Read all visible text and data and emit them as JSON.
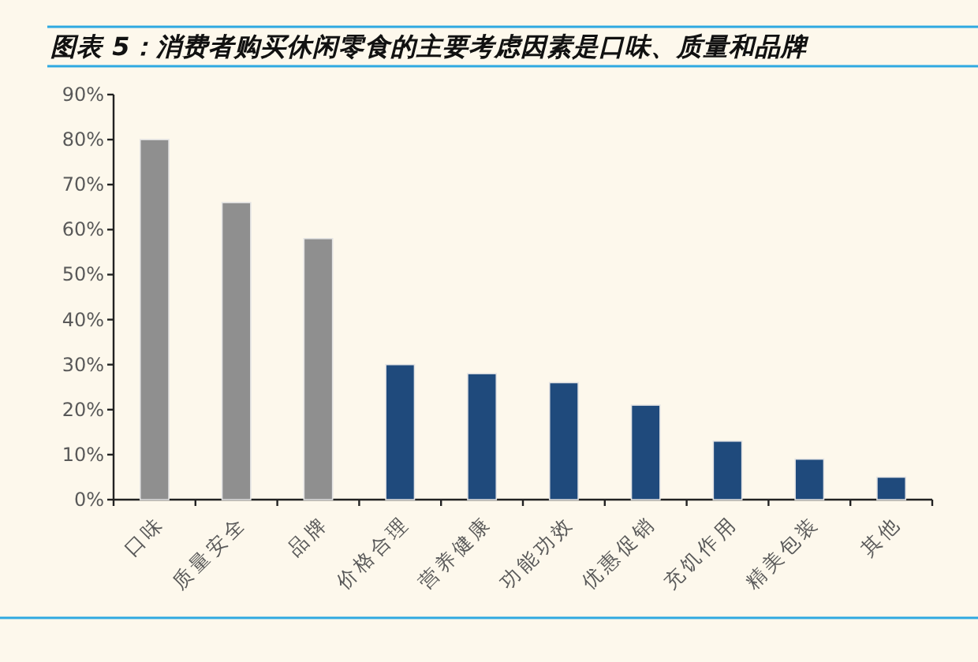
{
  "chart_data": {
    "type": "bar",
    "title": "图表 5：消费者购买休闲零食的主要考虑因素是口味、质量和品牌",
    "categories": [
      "口味",
      "质量安全",
      "品牌",
      "价格合理",
      "营养健康",
      "功能功效",
      "优惠促销",
      "充饥作用",
      "精美包装",
      "其他"
    ],
    "values": [
      80,
      66,
      58,
      30,
      28,
      26,
      21,
      13,
      9,
      5
    ],
    "colors": [
      "#8f8f8f",
      "#8f8f8f",
      "#8f8f8f",
      "#1f4a7c",
      "#1f4a7c",
      "#1f4a7c",
      "#1f4a7c",
      "#1f4a7c",
      "#1f4a7c",
      "#1f4a7c"
    ],
    "ylim": [
      0,
      90
    ],
    "yticks": [
      {
        "value": 0,
        "label": "0%"
      },
      {
        "value": 10,
        "label": "10%"
      },
      {
        "value": 20,
        "label": "20%"
      },
      {
        "value": 30,
        "label": "30%"
      },
      {
        "value": 40,
        "label": "40%"
      },
      {
        "value": 50,
        "label": "50%"
      },
      {
        "value": 60,
        "label": "60%"
      },
      {
        "value": 70,
        "label": "70%"
      },
      {
        "value": 80,
        "label": "80%"
      },
      {
        "value": 90,
        "label": "90%"
      }
    ]
  }
}
